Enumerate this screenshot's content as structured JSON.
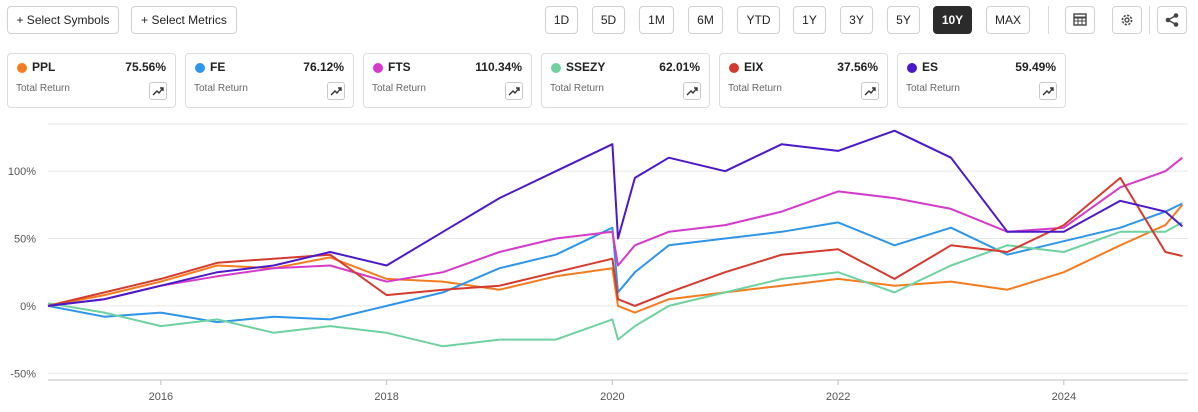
{
  "toolbar": {
    "select_symbols": "+ Select Symbols",
    "select_metrics": "+ Select Metrics",
    "ranges": [
      "1D",
      "5D",
      "1M",
      "6M",
      "YTD",
      "1Y",
      "3Y",
      "5Y",
      "10Y",
      "MAX"
    ],
    "active_range": "10Y",
    "icons": [
      "table-icon",
      "gear-icon",
      "share-icon"
    ]
  },
  "legend_cards": [
    {
      "symbol": "PPL",
      "value": "75.56%",
      "label": "Total Return",
      "color": "#f47c20"
    },
    {
      "symbol": "FE",
      "value": "76.12%",
      "label": "Total Return",
      "color": "#2e95e8"
    },
    {
      "symbol": "FTS",
      "value": "110.34%",
      "label": "Total Return",
      "color": "#d43bc8"
    },
    {
      "symbol": "SSEZY",
      "value": "62.01%",
      "label": "Total Return",
      "color": "#6fd1a0"
    },
    {
      "symbol": "EIX",
      "value": "37.56%",
      "label": "Total Return",
      "color": "#d43b2f"
    },
    {
      "symbol": "ES",
      "value": "59.49%",
      "label": "Total Return",
      "color": "#4b19c7"
    }
  ],
  "chart_data": {
    "type": "line",
    "x_ticks": [
      "2016",
      "2018",
      "2020",
      "2022",
      "2024"
    ],
    "y_ticks": [
      "100%",
      "50%",
      "0%",
      "-50%"
    ],
    "ylim": [
      -55,
      135
    ],
    "xlim": [
      2015.0,
      2025.1
    ],
    "grid": true,
    "series": [
      {
        "name": "PPL",
        "color": "#f47c20",
        "points": [
          [
            2015.0,
            0
          ],
          [
            2015.5,
            8
          ],
          [
            2016.0,
            18
          ],
          [
            2016.5,
            30
          ],
          [
            2017.0,
            28
          ],
          [
            2017.5,
            36
          ],
          [
            2018.0,
            20
          ],
          [
            2018.5,
            18
          ],
          [
            2019.0,
            12
          ],
          [
            2019.5,
            22
          ],
          [
            2020.0,
            28
          ],
          [
            2020.05,
            0
          ],
          [
            2020.2,
            -5
          ],
          [
            2020.5,
            5
          ],
          [
            2021.0,
            10
          ],
          [
            2021.5,
            15
          ],
          [
            2022.0,
            20
          ],
          [
            2022.5,
            15
          ],
          [
            2023.0,
            18
          ],
          [
            2023.5,
            12
          ],
          [
            2024.0,
            25
          ],
          [
            2024.5,
            45
          ],
          [
            2024.9,
            60
          ],
          [
            2025.05,
            75
          ]
        ]
      },
      {
        "name": "FE",
        "color": "#2e95e8",
        "points": [
          [
            2015.0,
            0
          ],
          [
            2015.5,
            -8
          ],
          [
            2016.0,
            -5
          ],
          [
            2016.5,
            -12
          ],
          [
            2017.0,
            -8
          ],
          [
            2017.5,
            -10
          ],
          [
            2018.0,
            0
          ],
          [
            2018.5,
            10
          ],
          [
            2019.0,
            28
          ],
          [
            2019.5,
            38
          ],
          [
            2020.0,
            58
          ],
          [
            2020.05,
            10
          ],
          [
            2020.2,
            25
          ],
          [
            2020.5,
            45
          ],
          [
            2021.0,
            50
          ],
          [
            2021.5,
            55
          ],
          [
            2022.0,
            62
          ],
          [
            2022.5,
            45
          ],
          [
            2023.0,
            58
          ],
          [
            2023.5,
            38
          ],
          [
            2024.0,
            48
          ],
          [
            2024.5,
            58
          ],
          [
            2024.9,
            70
          ],
          [
            2025.05,
            76
          ]
        ]
      },
      {
        "name": "FTS",
        "color": "#d43bc8",
        "points": [
          [
            2015.0,
            0
          ],
          [
            2015.5,
            5
          ],
          [
            2016.0,
            15
          ],
          [
            2016.5,
            22
          ],
          [
            2017.0,
            28
          ],
          [
            2017.5,
            30
          ],
          [
            2018.0,
            18
          ],
          [
            2018.5,
            25
          ],
          [
            2019.0,
            40
          ],
          [
            2019.5,
            50
          ],
          [
            2020.0,
            55
          ],
          [
            2020.05,
            30
          ],
          [
            2020.2,
            45
          ],
          [
            2020.5,
            55
          ],
          [
            2021.0,
            60
          ],
          [
            2021.5,
            70
          ],
          [
            2022.0,
            85
          ],
          [
            2022.5,
            80
          ],
          [
            2023.0,
            72
          ],
          [
            2023.5,
            55
          ],
          [
            2024.0,
            58
          ],
          [
            2024.5,
            88
          ],
          [
            2024.9,
            100
          ],
          [
            2025.05,
            110
          ]
        ]
      },
      {
        "name": "SSEZY",
        "color": "#6fd1a0",
        "points": [
          [
            2015.0,
            2
          ],
          [
            2015.5,
            -5
          ],
          [
            2016.0,
            -15
          ],
          [
            2016.5,
            -10
          ],
          [
            2017.0,
            -20
          ],
          [
            2017.5,
            -15
          ],
          [
            2018.0,
            -20
          ],
          [
            2018.5,
            -30
          ],
          [
            2019.0,
            -25
          ],
          [
            2019.5,
            -25
          ],
          [
            2020.0,
            -10
          ],
          [
            2020.05,
            -25
          ],
          [
            2020.2,
            -15
          ],
          [
            2020.5,
            0
          ],
          [
            2021.0,
            10
          ],
          [
            2021.5,
            20
          ],
          [
            2022.0,
            25
          ],
          [
            2022.5,
            10
          ],
          [
            2023.0,
            30
          ],
          [
            2023.5,
            45
          ],
          [
            2024.0,
            40
          ],
          [
            2024.5,
            55
          ],
          [
            2024.9,
            55
          ],
          [
            2025.05,
            62
          ]
        ]
      },
      {
        "name": "EIX",
        "color": "#d43b2f",
        "points": [
          [
            2015.0,
            0
          ],
          [
            2015.5,
            10
          ],
          [
            2016.0,
            20
          ],
          [
            2016.5,
            32
          ],
          [
            2017.0,
            35
          ],
          [
            2017.5,
            38
          ],
          [
            2018.0,
            8
          ],
          [
            2018.5,
            12
          ],
          [
            2019.0,
            15
          ],
          [
            2019.5,
            25
          ],
          [
            2020.0,
            35
          ],
          [
            2020.05,
            5
          ],
          [
            2020.2,
            0
          ],
          [
            2020.5,
            10
          ],
          [
            2021.0,
            25
          ],
          [
            2021.5,
            38
          ],
          [
            2022.0,
            42
          ],
          [
            2022.5,
            20
          ],
          [
            2023.0,
            45
          ],
          [
            2023.5,
            40
          ],
          [
            2024.0,
            60
          ],
          [
            2024.5,
            95
          ],
          [
            2024.9,
            40
          ],
          [
            2025.05,
            37
          ]
        ]
      },
      {
        "name": "ES",
        "color": "#4b19c7",
        "points": [
          [
            2015.0,
            0
          ],
          [
            2015.5,
            5
          ],
          [
            2016.0,
            15
          ],
          [
            2016.5,
            25
          ],
          [
            2017.0,
            30
          ],
          [
            2017.5,
            40
          ],
          [
            2018.0,
            30
          ],
          [
            2018.5,
            55
          ],
          [
            2019.0,
            80
          ],
          [
            2019.5,
            100
          ],
          [
            2020.0,
            120
          ],
          [
            2020.05,
            50
          ],
          [
            2020.2,
            95
          ],
          [
            2020.5,
            110
          ],
          [
            2021.0,
            100
          ],
          [
            2021.5,
            120
          ],
          [
            2022.0,
            115
          ],
          [
            2022.5,
            130
          ],
          [
            2023.0,
            110
          ],
          [
            2023.5,
            55
          ],
          [
            2024.0,
            55
          ],
          [
            2024.5,
            78
          ],
          [
            2024.9,
            70
          ],
          [
            2025.05,
            59
          ]
        ]
      }
    ]
  }
}
